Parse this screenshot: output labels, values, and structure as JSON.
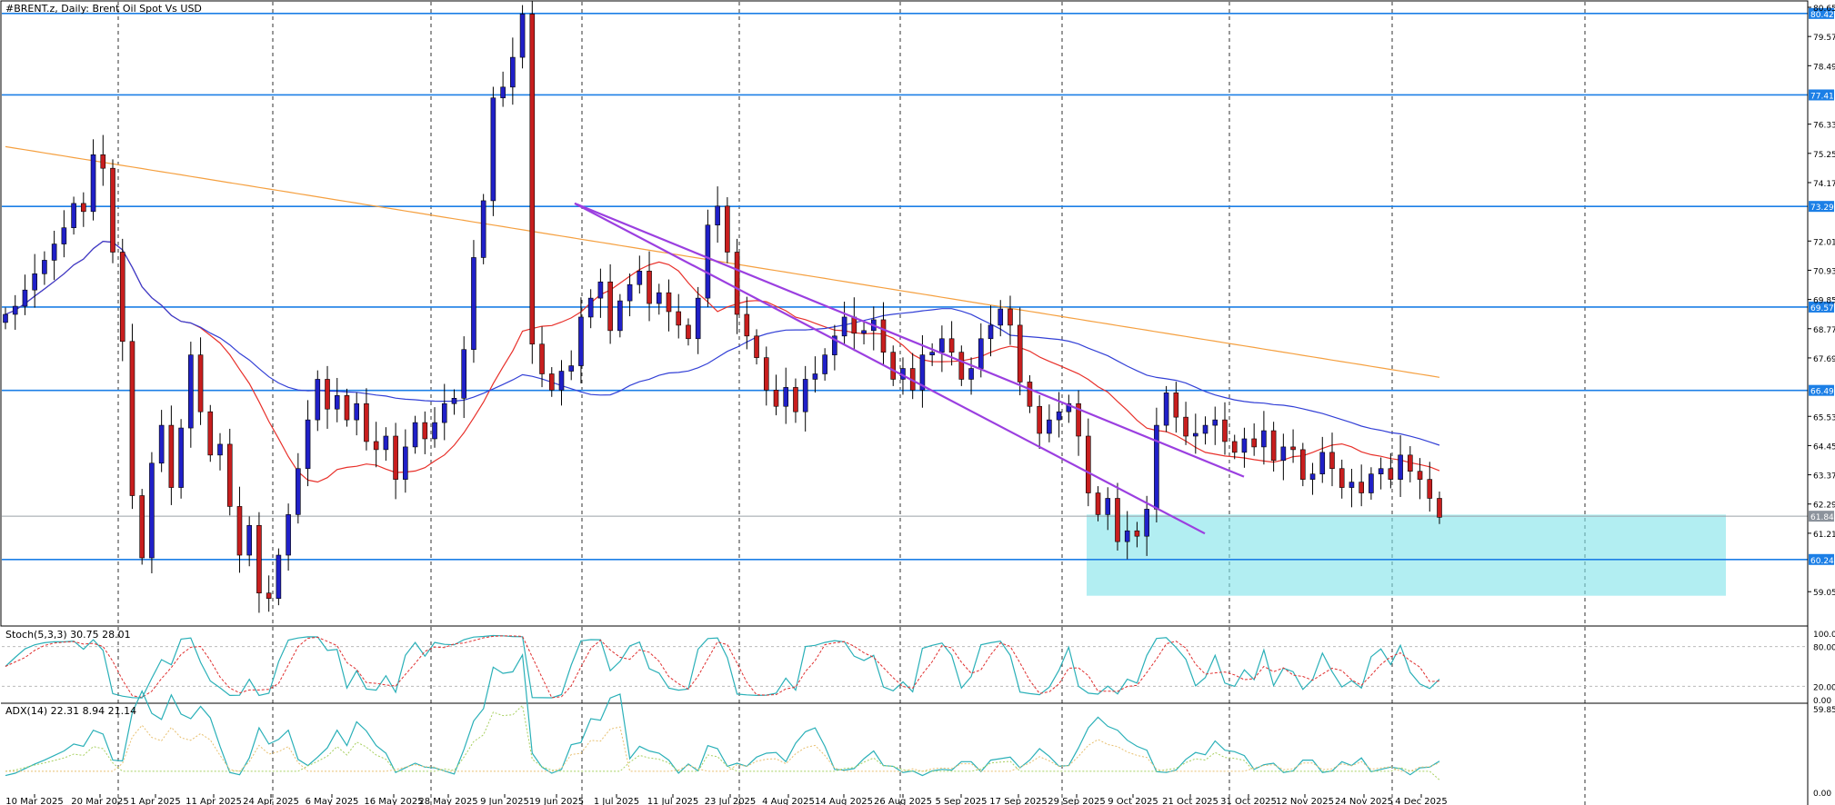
{
  "chart_data": {
    "type": "candlestick",
    "title": "#BRENT.z, Daily:  Brent Oil Spot Vs USD",
    "y_range": [
      58.05,
      80.65
    ],
    "price_ticks": [
      "80.65",
      "79.57",
      "78.49",
      "77.41",
      "76.33",
      "75.25",
      "74.17",
      "73.29",
      "72.01",
      "70.93",
      "69.85",
      "68.77",
      "67.69",
      "66.49",
      "65.53",
      "64.45",
      "63.37",
      "62.29",
      "61.84",
      "61.21",
      "60.24",
      "59.05"
    ],
    "horizontal_levels": [
      {
        "value": 80.42,
        "label": "80.42"
      },
      {
        "value": 77.41,
        "label": "77.41"
      },
      {
        "value": 73.29,
        "label": "73.29"
      },
      {
        "value": 69.57,
        "label": "69.57"
      },
      {
        "value": 66.49,
        "label": "66.49"
      },
      {
        "value": 60.24,
        "label": "60.24"
      }
    ],
    "last_price": {
      "value": 61.84,
      "label": "61.84"
    },
    "support_zone": {
      "low": 58.9,
      "high": 61.9,
      "x_start": "1 Oct 2025",
      "x_end": "~31 Dec 2025"
    },
    "trendlines": [
      {
        "from": {
          "date": "25 Jul 2025",
          "price": 73.4
        },
        "to": {
          "date": "~17 Dec 2025",
          "price": 61.2
        }
      },
      {
        "from": {
          "date": "25 Jul 2025",
          "price": 73.4
        },
        "to": {
          "date": "~24 Dec 2025",
          "price": 63.3
        }
      }
    ],
    "x_labels": [
      "10 Mar 2025",
      "20 Mar 2025",
      "1 Apr 2025",
      "11 Apr 2025",
      "24 Apr 2025",
      "6 May 2025",
      "16 May 2025",
      "28 May 2025",
      "9 Jun 2025",
      "19 Jun 2025",
      "1 Jul 2025",
      "11 Jul 2025",
      "23 Jul 2025",
      "4 Aug 2025",
      "14 Aug 2025",
      "26 Aug 2025",
      "5 Sep 2025",
      "17 Sep 2025",
      "29 Sep 2025",
      "9 Oct 2025",
      "21 Oct 2025",
      "31 Oct 2025",
      "12 Nov 2025",
      "24 Nov 2025",
      "4 Dec 2025"
    ],
    "close_path": [
      69.3,
      69.6,
      70.2,
      70.8,
      71.3,
      71.9,
      72.5,
      73.4,
      73.1,
      75.2,
      74.7,
      71.6,
      68.3,
      62.6,
      60.3,
      63.8,
      65.2,
      62.9,
      65.1,
      67.8,
      65.7,
      64.1,
      64.5,
      62.2,
      60.4,
      61.5,
      59.0,
      58.8,
      60.4,
      61.9,
      63.6,
      65.4,
      66.9,
      65.8,
      66.3,
      65.4,
      66.0,
      64.6,
      64.3,
      64.8,
      63.2,
      64.4,
      65.3,
      64.7,
      65.3,
      66.0,
      66.2,
      68.0,
      71.4,
      73.5,
      77.3,
      77.7,
      78.8,
      80.4,
      68.2,
      67.1,
      66.5,
      67.2,
      67.4,
      69.2,
      69.9,
      70.5,
      68.7,
      69.8,
      70.4,
      70.9,
      69.7,
      70.1,
      69.4,
      68.9,
      68.4,
      69.9,
      72.6,
      73.3,
      71.6,
      69.3,
      68.5,
      67.7,
      66.5,
      65.9,
      66.6,
      65.7,
      66.9,
      67.1,
      67.8,
      68.5,
      69.2,
      68.6,
      68.7,
      69.1,
      67.9,
      66.9,
      67.3,
      66.5,
      67.8,
      67.9,
      68.4,
      67.9,
      66.9,
      67.3,
      68.4,
      68.9,
      69.5,
      68.9,
      66.8,
      65.9,
      64.9,
      65.4,
      65.7,
      66.0,
      64.8,
      62.7,
      61.9,
      62.5,
      60.9,
      61.3,
      61.1,
      62.1,
      65.2,
      66.4,
      65.5,
      64.8,
      64.9,
      65.2,
      65.4,
      64.6,
      64.2,
      64.7,
      64.4,
      65.0,
      63.9,
      64.4,
      64.3,
      63.2,
      63.4,
      64.2,
      63.6,
      62.9,
      63.1,
      62.7,
      63.4,
      63.6,
      63.2,
      64.1,
      63.5,
      63.2,
      62.5,
      61.8
    ],
    "moving_averages": [
      {
        "period": 20,
        "color": "#e8302a"
      },
      {
        "period": 50,
        "color": "#3340d6"
      },
      {
        "period": 200,
        "color": "#f5a040"
      }
    ],
    "colors": {
      "bull": "#2020c8",
      "bear": "#c81e1e",
      "levels": "#1c7fe6",
      "trendline": "#9b3fe0",
      "zone": "#7ee3ea"
    },
    "stochastic": {
      "label": "Stoch(5,3,3) 30.75 28.01",
      "ticks": [
        "100.00",
        "80.00",
        "20.00",
        "0.00"
      ],
      "main": 30.75,
      "signal": 28.01
    },
    "adx": {
      "label": "ADX(14) 22.31 8.94 21.14",
      "ticks": [
        "59.85",
        "0.00"
      ],
      "adx": 22.31,
      "plus_di": 8.94,
      "minus_di": 21.14
    }
  }
}
